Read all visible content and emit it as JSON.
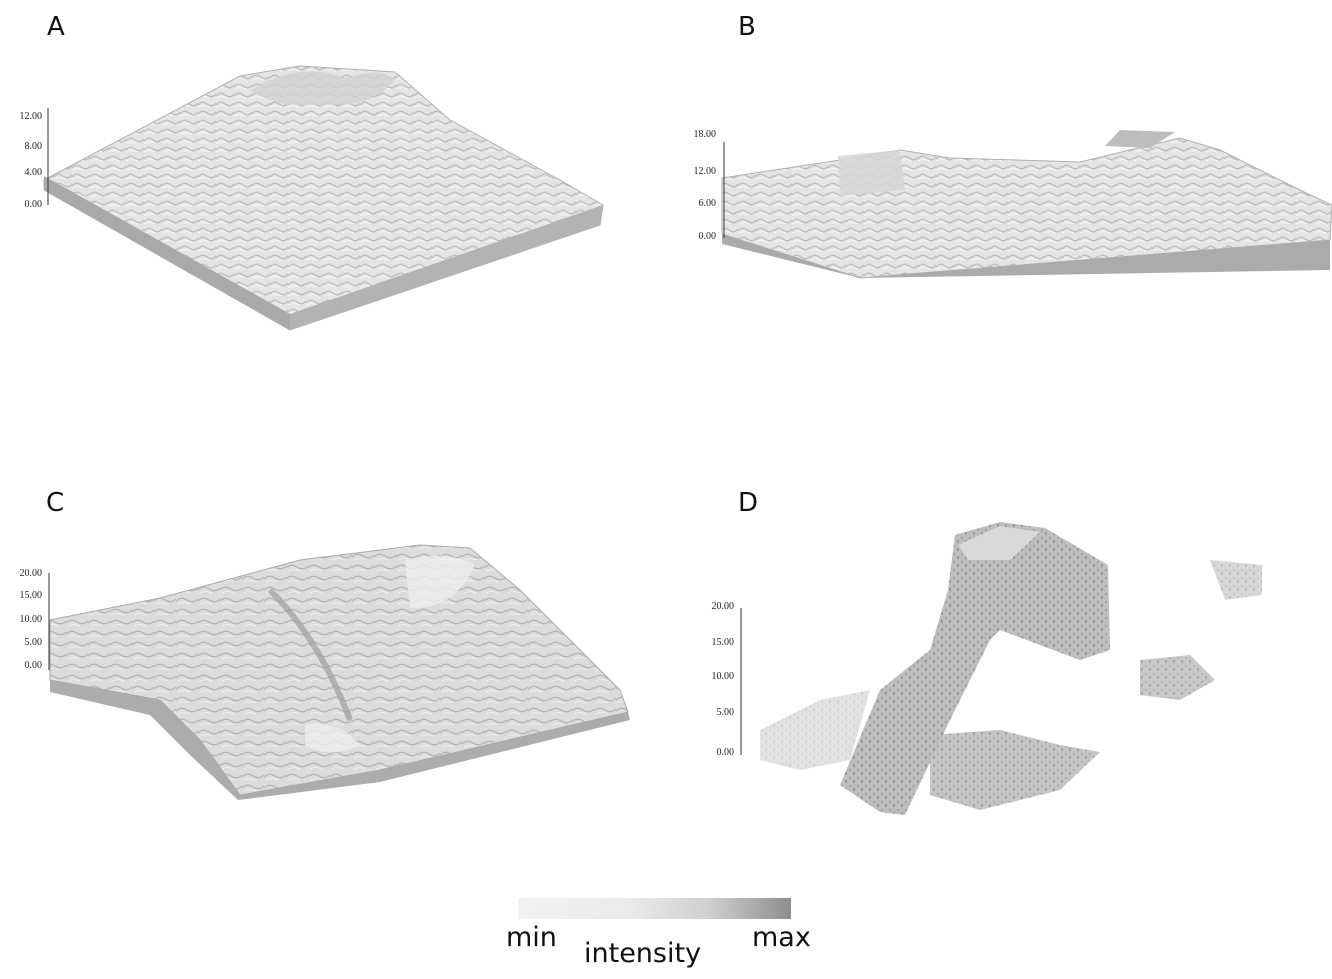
{
  "panels": [
    {
      "letter": "A",
      "ticks": [
        "12.00",
        "8.00",
        "4.00",
        "0.00"
      ]
    },
    {
      "letter": "B",
      "ticks": [
        "18.00",
        "12.00",
        "6.00",
        "0.00"
      ]
    },
    {
      "letter": "C",
      "ticks": [
        "20.00",
        "15.00",
        "10.00",
        "5.00",
        "0.00"
      ]
    },
    {
      "letter": "D",
      "ticks": [
        "20.00",
        "15.00",
        "10.00",
        "5.00",
        "0.00"
      ]
    }
  ],
  "legend": {
    "min": "min",
    "label": "intensity",
    "max": "max"
  },
  "colors": {
    "surface_light": "#e6e6e6",
    "surface_mid": "#c4c4c4",
    "surface_dark": "#9c9c9c",
    "edge": "#a8a8a8"
  }
}
